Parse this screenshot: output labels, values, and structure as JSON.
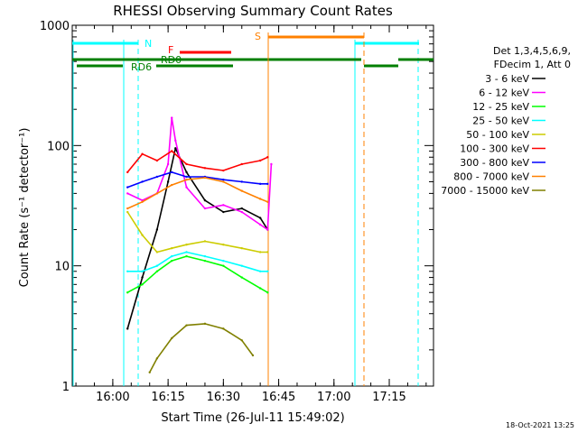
{
  "chart_data": {
    "type": "line",
    "title": "RHESSI Observing Summary Count Rates",
    "xlabel": "Start Time (26-Jul-11 15:49:02)",
    "ylabel": "Count Rate (s⁻¹ detector⁻¹)",
    "y_scale": "log",
    "ylim": [
      1,
      1000
    ],
    "xlim": [
      "15:49",
      "17:27"
    ],
    "x_ticks": [
      "16:00",
      "16:15",
      "16:30",
      "16:45",
      "17:00",
      "17:15"
    ],
    "y_ticks": [
      "1",
      "10",
      "100",
      "1000"
    ],
    "legend_header": [
      "Det 1,3,4,5,6,9,",
      "FDecim 1, Att 0"
    ],
    "legend_placement": "right",
    "footer_date": "18-Oct-2021 13:25",
    "series": [
      {
        "name": "3 - 6 keV",
        "color": "#000000",
        "x": [
          "16:04",
          "16:08",
          "16:12",
          "16:15",
          "16:17",
          "16:20",
          "16:25",
          "16:30",
          "16:35",
          "16:40",
          "16:42"
        ],
        "y": [
          3,
          8,
          20,
          50,
          95,
          60,
          35,
          28,
          30,
          25,
          20
        ]
      },
      {
        "name": "6 - 12 keV",
        "color": "#ff00ff",
        "x": [
          "16:04",
          "16:08",
          "16:12",
          "16:15",
          "16:16",
          "16:17",
          "16:20",
          "16:25",
          "16:30",
          "16:35",
          "16:40",
          "16:42",
          "16:43"
        ],
        "y": [
          40,
          35,
          40,
          70,
          170,
          110,
          45,
          30,
          32,
          28,
          22,
          20,
          70
        ]
      },
      {
        "name": "12 - 25 keV",
        "color": "#00ff00",
        "x": [
          "16:04",
          "16:08",
          "16:12",
          "16:16",
          "16:20",
          "16:25",
          "16:30",
          "16:35",
          "16:40",
          "16:42"
        ],
        "y": [
          6,
          7,
          9,
          11,
          12,
          11,
          10,
          8,
          6.5,
          6
        ]
      },
      {
        "name": "25 - 50 keV",
        "color": "#00ffff",
        "x": [
          "16:04",
          "16:08",
          "16:12",
          "16:16",
          "16:20",
          "16:25",
          "16:30",
          "16:35",
          "16:40",
          "16:42"
        ],
        "y": [
          9,
          9,
          10,
          12,
          13,
          12,
          11,
          10,
          9,
          9
        ]
      },
      {
        "name": "50 - 100 keV",
        "color": "#cccc00",
        "x": [
          "16:04",
          "16:08",
          "16:12",
          "16:16",
          "16:20",
          "16:25",
          "16:30",
          "16:35",
          "16:40",
          "16:42"
        ],
        "y": [
          28,
          18,
          13,
          14,
          15,
          16,
          15,
          14,
          13,
          13
        ]
      },
      {
        "name": "100 - 300 keV",
        "color": "#ff0000",
        "x": [
          "16:04",
          "16:08",
          "16:12",
          "16:16",
          "16:20",
          "16:25",
          "16:30",
          "16:35",
          "16:40",
          "16:42"
        ],
        "y": [
          60,
          85,
          75,
          90,
          70,
          65,
          62,
          70,
          75,
          80
        ]
      },
      {
        "name": "300 - 800 keV",
        "color": "#0000ff",
        "x": [
          "16:04",
          "16:08",
          "16:12",
          "16:16",
          "16:20",
          "16:25",
          "16:30",
          "16:35",
          "16:40",
          "16:42"
        ],
        "y": [
          45,
          50,
          55,
          60,
          55,
          55,
          52,
          50,
          48,
          48
        ]
      },
      {
        "name": "800 - 7000 keV",
        "color": "#ff8000",
        "x": [
          "16:04",
          "16:08",
          "16:12",
          "16:16",
          "16:20",
          "16:25",
          "16:30",
          "16:35",
          "16:40",
          "16:42"
        ],
        "y": [
          30,
          34,
          40,
          47,
          52,
          54,
          50,
          42,
          36,
          34
        ]
      },
      {
        "name": "7000 - 15000 keV",
        "color": "#808000",
        "x": [
          "16:10",
          "16:12",
          "16:16",
          "16:20",
          "16:25",
          "16:30",
          "16:35",
          "16:38"
        ],
        "y": [
          1.3,
          1.7,
          2.5,
          3.2,
          3.3,
          3.0,
          2.4,
          1.8
        ]
      }
    ],
    "annotations": [
      {
        "label": "N",
        "color": "#00ffff"
      },
      {
        "label": "F",
        "color": "#ff0000"
      },
      {
        "label": "RD0",
        "color": "#007f00"
      },
      {
        "label": "RD6",
        "color": "#007f00"
      },
      {
        "label": "S",
        "color": "#ff8000"
      }
    ]
  }
}
